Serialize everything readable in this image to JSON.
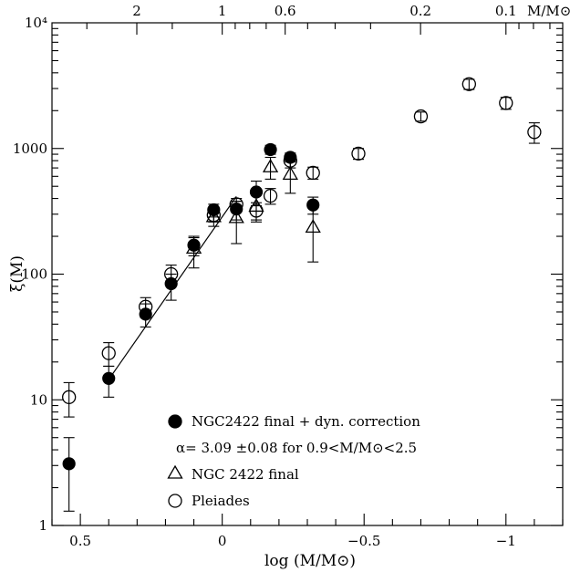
{
  "chart_data": {
    "type": "scatter",
    "xlabel": "log (M/M⊙)",
    "ylabel": "ξ(M)",
    "xlim": [
      0.6,
      -1.2
    ],
    "ylim_log10": [
      0,
      4
    ],
    "yscale": "log",
    "x_ticks": [
      {
        "value": 0.5,
        "label": "0.5"
      },
      {
        "value": 0,
        "label": "0"
      },
      {
        "value": -0.5,
        "label": "−0.5"
      },
      {
        "value": -1,
        "label": "−1"
      }
    ],
    "y_ticks": [
      {
        "value": 1,
        "label": "1"
      },
      {
        "value": 10,
        "label": "10"
      },
      {
        "value": 100,
        "label": "100"
      },
      {
        "value": 1000,
        "label": "1000"
      },
      {
        "value": 10000,
        "label": "10⁴"
      }
    ],
    "top_axis": {
      "label": "M/M⊙",
      "ticks": [
        {
          "value": 2,
          "label": "2"
        },
        {
          "value": 1,
          "label": "1"
        },
        {
          "value": 0.6,
          "label": "0.6"
        },
        {
          "value": 0.2,
          "label": "0.2"
        },
        {
          "value": 0.1,
          "label": "0.1"
        }
      ]
    },
    "series": [
      {
        "name": "NGC2422 final + dyn. correction",
        "marker": "filled-circle",
        "points": [
          {
            "x": 0.54,
            "y": 3.1,
            "ylo": 1.3,
            "yhi": 5.0
          },
          {
            "x": 0.4,
            "y": 14.8,
            "ylo": 10.5,
            "yhi": 18.5
          },
          {
            "x": 0.27,
            "y": 48,
            "ylo": 38,
            "yhi": 58
          },
          {
            "x": 0.18,
            "y": 84,
            "ylo": 62,
            "yhi": 100
          },
          {
            "x": 0.1,
            "y": 170,
            "ylo": 140,
            "yhi": 195
          },
          {
            "x": 0.03,
            "y": 325,
            "ylo": 285,
            "yhi": 360
          },
          {
            "x": -0.05,
            "y": 330,
            "ylo": 270,
            "yhi": 380
          },
          {
            "x": -0.12,
            "y": 450,
            "ylo": 350,
            "yhi": 550
          },
          {
            "x": -0.17,
            "y": 980,
            "ylo": 900,
            "yhi": 1060
          },
          {
            "x": -0.24,
            "y": 850,
            "ylo": 780,
            "yhi": 920
          },
          {
            "x": -0.32,
            "y": 355,
            "ylo": 300,
            "yhi": 410
          }
        ]
      },
      {
        "name": "NGC 2422 final",
        "marker": "open-triangle",
        "points": [
          {
            "x": 0.1,
            "y": 160,
            "ylo": 112,
            "yhi": 200
          },
          {
            "x": 0.03,
            "y": 285,
            "ylo": 240,
            "yhi": 330
          },
          {
            "x": -0.05,
            "y": 280,
            "ylo": 175,
            "yhi": 380
          },
          {
            "x": -0.12,
            "y": 345,
            "ylo": 260,
            "yhi": 440
          },
          {
            "x": -0.17,
            "y": 710,
            "ylo": 570,
            "yhi": 850
          },
          {
            "x": -0.24,
            "y": 620,
            "ylo": 440,
            "yhi": 800
          },
          {
            "x": -0.32,
            "y": 235,
            "ylo": 125,
            "yhi": 345
          }
        ]
      },
      {
        "name": "Pleiades",
        "marker": "open-circle",
        "points": [
          {
            "x": 0.54,
            "y": 10.5,
            "ylo": 7.3,
            "yhi": 13.7
          },
          {
            "x": 0.4,
            "y": 23.5,
            "ylo": 18.5,
            "yhi": 28.5
          },
          {
            "x": 0.27,
            "y": 55,
            "ylo": 45,
            "yhi": 65
          },
          {
            "x": 0.18,
            "y": 100,
            "ylo": 82,
            "yhi": 118
          },
          {
            "x": 0.03,
            "y": 295,
            "ylo": 260,
            "yhi": 330
          },
          {
            "x": -0.05,
            "y": 360,
            "ylo": 320,
            "yhi": 400
          },
          {
            "x": -0.12,
            "y": 320,
            "ylo": 270,
            "yhi": 370
          },
          {
            "x": -0.17,
            "y": 420,
            "ylo": 360,
            "yhi": 480
          },
          {
            "x": -0.24,
            "y": 800,
            "ylo": 700,
            "yhi": 900
          },
          {
            "x": -0.32,
            "y": 640,
            "ylo": 570,
            "yhi": 710
          },
          {
            "x": -0.48,
            "y": 910,
            "ylo": 820,
            "yhi": 1000
          },
          {
            "x": -0.7,
            "y": 1800,
            "ylo": 1650,
            "yhi": 1950
          },
          {
            "x": -0.87,
            "y": 3250,
            "ylo": 2950,
            "yhi": 3550
          },
          {
            "x": -1.0,
            "y": 2300,
            "ylo": 2050,
            "yhi": 2550
          },
          {
            "x": -1.1,
            "y": 1350,
            "ylo": 1100,
            "yhi": 1600
          }
        ]
      }
    ],
    "fit_line": {
      "x": [
        0.4,
        -0.05
      ],
      "y": [
        14.5,
        415
      ]
    },
    "annotations": {
      "legend_filled": "NGC2422 final + dyn. correction",
      "alpha_text": "α= 3.09 ±0.08 for 0.9<M/M⊙<2.5",
      "legend_triangle": "NGC 2422 final",
      "legend_open": "Pleiades"
    }
  }
}
